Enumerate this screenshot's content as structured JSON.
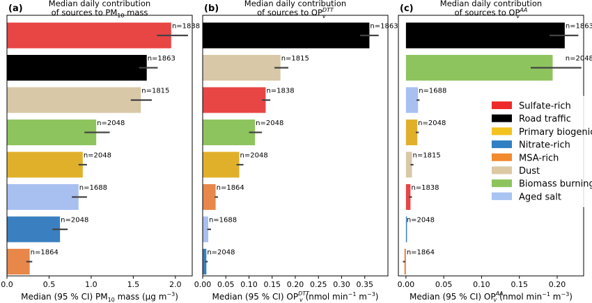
{
  "categories": [
    "Sulfate-rich",
    "Road traffic",
    "Primary biogenic",
    "Nitrate-rich",
    "MSA-rich",
    "Dust",
    "Biomass burning",
    "Aged salt"
  ],
  "colors": {
    "Sulfate-rich": "#e84545",
    "Road traffic": "#000000",
    "Primary biogenic": "#e0b02a",
    "Nitrate-rich": "#3a7fc0",
    "MSA-rich": "#e8874a",
    "Dust": "#d8c8a8",
    "Biomass burning": "#8ec45e",
    "Aged salt": "#a8c0f0"
  },
  "legend": {
    "placement": "right",
    "entries": [
      {
        "label": "Sulfate-rich",
        "color": "#ee2b2b"
      },
      {
        "label": "Road traffic",
        "color": "#000000"
      },
      {
        "label": "Primary biogenic",
        "color": "#f2c21f"
      },
      {
        "label": "Nitrate-rich",
        "color": "#2f7fc2"
      },
      {
        "label": "MSA-rich",
        "color": "#f28a30"
      },
      {
        "label": "Dust",
        "color": "#dcc8a3"
      },
      {
        "label": "Biomass burning",
        "color": "#8ec45e"
      },
      {
        "label": "Aged salt",
        "color": "#a8c4f2"
      }
    ]
  },
  "chart_data": [
    {
      "type": "bar",
      "orientation": "horizontal",
      "panel": "(a)",
      "title_line1": "Median daily contribution",
      "title_line2_pre": "of sources to PM",
      "title_line2_sub": "10",
      "title_line2_post": " mass",
      "xlabel_pre": "Median (95 % CI) PM",
      "xlabel_sub": "10",
      "xlabel_post": " mass (μg  m",
      "xlabel_sup": "−3",
      "xlabel_end": ")",
      "xlim": [
        0,
        2.2
      ],
      "xticks": [
        0.0,
        0.5,
        1.0,
        1.5,
        2.0
      ],
      "xtick_labels": [
        "0.0",
        "0.5",
        "1.0",
        "1.5",
        "2.0"
      ],
      "bars": [
        {
          "category": "Sulfate-rich",
          "value": 1.95,
          "ci": [
            1.78,
            2.15
          ],
          "n": "n=1838"
        },
        {
          "category": "Road traffic",
          "value": 1.66,
          "ci": [
            1.57,
            1.79
          ],
          "n": "n=1863"
        },
        {
          "category": "Dust",
          "value": 1.59,
          "ci": [
            1.47,
            1.72
          ],
          "n": "n=1815"
        },
        {
          "category": "Biomass burning",
          "value": 1.06,
          "ci": [
            0.92,
            1.22
          ],
          "n": "n=2048"
        },
        {
          "category": "Primary biogenic",
          "value": 0.9,
          "ci": [
            0.85,
            0.95
          ],
          "n": "n=2048"
        },
        {
          "category": "Aged salt",
          "value": 0.85,
          "ci": [
            0.77,
            0.95
          ],
          "n": "n=1688"
        },
        {
          "category": "Nitrate-rich",
          "value": 0.63,
          "ci": [
            0.54,
            0.72
          ],
          "n": "n=2048"
        },
        {
          "category": "MSA-rich",
          "value": 0.27,
          "ci": [
            0.23,
            0.3
          ],
          "n": "n=1864"
        }
      ]
    },
    {
      "type": "bar",
      "orientation": "horizontal",
      "panel": "(b)",
      "title_line1": "Median daily contribution",
      "title_line2_pre": "of sources to OP",
      "title_line2_sub": "v",
      "title_line2_sup": "DTT",
      "xlabel_pre": "Median (95 % CI) OP",
      "xlabel_sub": "v",
      "xlabel_sup1": "DTT",
      "xlabel_post": " (nmol  min",
      "xlabel_sup2": "−1",
      "xlabel_mid": "  m",
      "xlabel_sup3": "−3",
      "xlabel_end": ")",
      "xlim": [
        0,
        0.4
      ],
      "xticks": [
        0.0,
        0.05,
        0.1,
        0.15,
        0.2,
        0.25,
        0.3,
        0.35
      ],
      "xtick_labels": [
        "0.00",
        "0.05",
        "0.10",
        "0.15",
        "0.20",
        "0.25",
        "0.30",
        "0.35"
      ],
      "bars": [
        {
          "category": "Road traffic",
          "value": 0.36,
          "ci": [
            0.34,
            0.38
          ],
          "n": "n=1863"
        },
        {
          "category": "Dust",
          "value": 0.168,
          "ci": [
            0.155,
            0.185
          ],
          "n": "n=1815"
        },
        {
          "category": "Sulfate-rich",
          "value": 0.136,
          "ci": [
            0.128,
            0.146
          ],
          "n": "n=1838"
        },
        {
          "category": "Biomass burning",
          "value": 0.113,
          "ci": [
            0.1,
            0.128
          ],
          "n": "n=2048"
        },
        {
          "category": "Primary biogenic",
          "value": 0.079,
          "ci": [
            0.073,
            0.088
          ],
          "n": "n=2048"
        },
        {
          "category": "MSA-rich",
          "value": 0.028,
          "ci": [
            0.026,
            0.033
          ],
          "n": "n=1864"
        },
        {
          "category": "Aged salt",
          "value": 0.012,
          "ci": [
            0.01,
            0.018
          ],
          "n": "n=1688"
        },
        {
          "category": "Nitrate-rich",
          "value": 0.008,
          "ci": [
            0.005,
            0.011
          ],
          "n": "n=2048"
        }
      ]
    },
    {
      "type": "bar",
      "orientation": "horizontal",
      "panel": "(c)",
      "title_line1": "Median daily contribution",
      "title_line2_pre": "of sources to OP",
      "title_line2_sub": "v",
      "title_line2_sup": "AA",
      "xlabel_pre": "Median (95 % CI) OP",
      "xlabel_sub": "v",
      "xlabel_sup1": "AA",
      "xlabel_post": " (nmol  min",
      "xlabel_sup2": "−1",
      "xlabel_mid": "  m",
      "xlabel_sup3": "−3",
      "xlabel_end": ")",
      "xlim": [
        -0.01,
        0.235
      ],
      "xticks": [
        0.0,
        0.05,
        0.1,
        0.15,
        0.2
      ],
      "xtick_labels": [
        "0.00",
        "0.05",
        "0.10",
        "0.15",
        "0.20"
      ],
      "bars": [
        {
          "category": "Road traffic",
          "value": 0.21,
          "ci": [
            0.19,
            0.228
          ],
          "n": "n=1863"
        },
        {
          "category": "Biomass burning",
          "value": 0.194,
          "ci": [
            0.165,
            0.232
          ],
          "n": "n=2048"
        },
        {
          "category": "Aged salt",
          "value": 0.016,
          "ci": [
            0.014,
            0.018
          ],
          "n": "n=1688"
        },
        {
          "category": "Primary biogenic",
          "value": 0.015,
          "ci": [
            0.013,
            0.017
          ],
          "n": "n=2048"
        },
        {
          "category": "Dust",
          "value": 0.008,
          "ci": [
            0.006,
            0.01
          ],
          "n": "n=1815"
        },
        {
          "category": "Sulfate-rich",
          "value": 0.006,
          "ci": [
            0.004,
            0.008
          ],
          "n": "n=1838"
        },
        {
          "category": "Nitrate-rich",
          "value": 0.0,
          "ci": [
            0.0,
            0.0
          ],
          "n": "n=2048"
        },
        {
          "category": "MSA-rich",
          "value": -0.002,
          "ci": [
            -0.004,
            -0.001
          ],
          "n": "n=1864"
        }
      ]
    }
  ]
}
